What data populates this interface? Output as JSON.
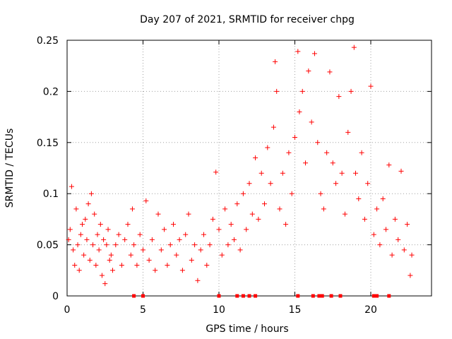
{
  "chart_data": {
    "type": "scatter",
    "title": "Day 207 of 2021, SRMTID for receiver chpg",
    "xlabel": "GPS time / hours",
    "ylabel": "SRMTID / TECUs",
    "xlim": [
      0,
      24
    ],
    "ylim": [
      0,
      0.25
    ],
    "xticks": [
      0,
      5,
      10,
      15,
      20
    ],
    "xtick_labels": [
      "0",
      "5",
      "10",
      "15",
      "20"
    ],
    "yticks": [
      0,
      0.05,
      0.1,
      0.15,
      0.2,
      0.25
    ],
    "ytick_labels": [
      "0",
      "0.05",
      "0.1",
      "0.15",
      "0.2",
      "0.25"
    ],
    "grid": true,
    "marker": "plus",
    "color": "#ff0000",
    "series": [
      {
        "name": "SRMTID",
        "points": [
          [
            0.1,
            0.055
          ],
          [
            0.2,
            0.065
          ],
          [
            0.3,
            0.107
          ],
          [
            0.4,
            0.045
          ],
          [
            0.5,
            0.03
          ],
          [
            0.6,
            0.085
          ],
          [
            0.7,
            0.05
          ],
          [
            0.8,
            0.025
          ],
          [
            0.9,
            0.06
          ],
          [
            1.0,
            0.07
          ],
          [
            1.1,
            0.04
          ],
          [
            1.2,
            0.075
          ],
          [
            1.3,
            0.055
          ],
          [
            1.4,
            0.09
          ],
          [
            1.5,
            0.035
          ],
          [
            1.6,
            0.1
          ],
          [
            1.7,
            0.05
          ],
          [
            1.8,
            0.08
          ],
          [
            1.9,
            0.03
          ],
          [
            2.0,
            0.06
          ],
          [
            2.1,
            0.045
          ],
          [
            2.2,
            0.07
          ],
          [
            2.3,
            0.02
          ],
          [
            2.4,
            0.055
          ],
          [
            2.5,
            0.012
          ],
          [
            2.6,
            0.05
          ],
          [
            2.7,
            0.065
          ],
          [
            2.8,
            0.035
          ],
          [
            2.9,
            0.04
          ],
          [
            3.0,
            0.025
          ],
          [
            3.2,
            0.05
          ],
          [
            3.4,
            0.06
          ],
          [
            3.6,
            0.03
          ],
          [
            3.8,
            0.055
          ],
          [
            4.0,
            0.07
          ],
          [
            4.2,
            0.04
          ],
          [
            4.3,
            0.085
          ],
          [
            4.4,
            0.05
          ],
          [
            4.6,
            0.03
          ],
          [
            4.8,
            0.06
          ],
          [
            5.0,
            0.045
          ],
          [
            5.2,
            0.093
          ],
          [
            5.4,
            0.035
          ],
          [
            5.6,
            0.055
          ],
          [
            5.8,
            0.025
          ],
          [
            6.0,
            0.08
          ],
          [
            6.2,
            0.045
          ],
          [
            6.4,
            0.065
          ],
          [
            6.6,
            0.03
          ],
          [
            6.8,
            0.05
          ],
          [
            7.0,
            0.07
          ],
          [
            7.2,
            0.04
          ],
          [
            7.4,
            0.055
          ],
          [
            7.6,
            0.025
          ],
          [
            7.8,
            0.06
          ],
          [
            8.0,
            0.08
          ],
          [
            8.2,
            0.035
          ],
          [
            8.4,
            0.05
          ],
          [
            8.6,
            0.015
          ],
          [
            8.8,
            0.045
          ],
          [
            9.0,
            0.06
          ],
          [
            9.2,
            0.03
          ],
          [
            9.4,
            0.05
          ],
          [
            9.6,
            0.075
          ],
          [
            9.8,
            0.121
          ],
          [
            10.0,
            0.065
          ],
          [
            10.2,
            0.04
          ],
          [
            10.4,
            0.085
          ],
          [
            10.6,
            0.05
          ],
          [
            10.8,
            0.07
          ],
          [
            11.0,
            0.055
          ],
          [
            11.2,
            0.09
          ],
          [
            11.4,
            0.045
          ],
          [
            11.6,
            0.1
          ],
          [
            11.8,
            0.065
          ],
          [
            12.0,
            0.11
          ],
          [
            12.2,
            0.08
          ],
          [
            12.4,
            0.135
          ],
          [
            12.6,
            0.075
          ],
          [
            12.8,
            0.12
          ],
          [
            13.0,
            0.09
          ],
          [
            13.2,
            0.145
          ],
          [
            13.4,
            0.11
          ],
          [
            13.6,
            0.165
          ],
          [
            13.7,
            0.229
          ],
          [
            13.8,
            0.2
          ],
          [
            14.0,
            0.085
          ],
          [
            14.2,
            0.12
          ],
          [
            14.4,
            0.07
          ],
          [
            14.6,
            0.14
          ],
          [
            14.8,
            0.1
          ],
          [
            15.0,
            0.155
          ],
          [
            15.2,
            0.239
          ],
          [
            15.3,
            0.18
          ],
          [
            15.5,
            0.2
          ],
          [
            15.7,
            0.13
          ],
          [
            15.9,
            0.22
          ],
          [
            16.1,
            0.17
          ],
          [
            16.3,
            0.237
          ],
          [
            16.5,
            0.15
          ],
          [
            16.7,
            0.1
          ],
          [
            16.9,
            0.085
          ],
          [
            17.1,
            0.14
          ],
          [
            17.3,
            0.219
          ],
          [
            17.5,
            0.13
          ],
          [
            17.7,
            0.11
          ],
          [
            17.9,
            0.195
          ],
          [
            18.1,
            0.12
          ],
          [
            18.3,
            0.08
          ],
          [
            18.5,
            0.16
          ],
          [
            18.7,
            0.2
          ],
          [
            18.9,
            0.243
          ],
          [
            19.0,
            0.12
          ],
          [
            19.2,
            0.095
          ],
          [
            19.4,
            0.14
          ],
          [
            19.6,
            0.075
          ],
          [
            19.8,
            0.11
          ],
          [
            20.0,
            0.205
          ],
          [
            20.2,
            0.06
          ],
          [
            20.4,
            0.085
          ],
          [
            20.6,
            0.05
          ],
          [
            20.8,
            0.095
          ],
          [
            21.0,
            0.065
          ],
          [
            21.2,
            0.128
          ],
          [
            21.4,
            0.04
          ],
          [
            21.6,
            0.075
          ],
          [
            21.8,
            0.055
          ],
          [
            22.0,
            0.122
          ],
          [
            22.2,
            0.045
          ],
          [
            22.4,
            0.07
          ],
          [
            22.6,
            0.02
          ],
          [
            22.7,
            0.04
          ]
        ]
      }
    ],
    "baseline_markers": [
      4.4,
      5.0,
      10.0,
      11.2,
      11.6,
      12.0,
      12.4,
      15.2,
      16.2,
      16.6,
      16.8,
      17.4,
      18.0,
      20.2,
      20.3,
      20.4,
      21.2
    ]
  }
}
